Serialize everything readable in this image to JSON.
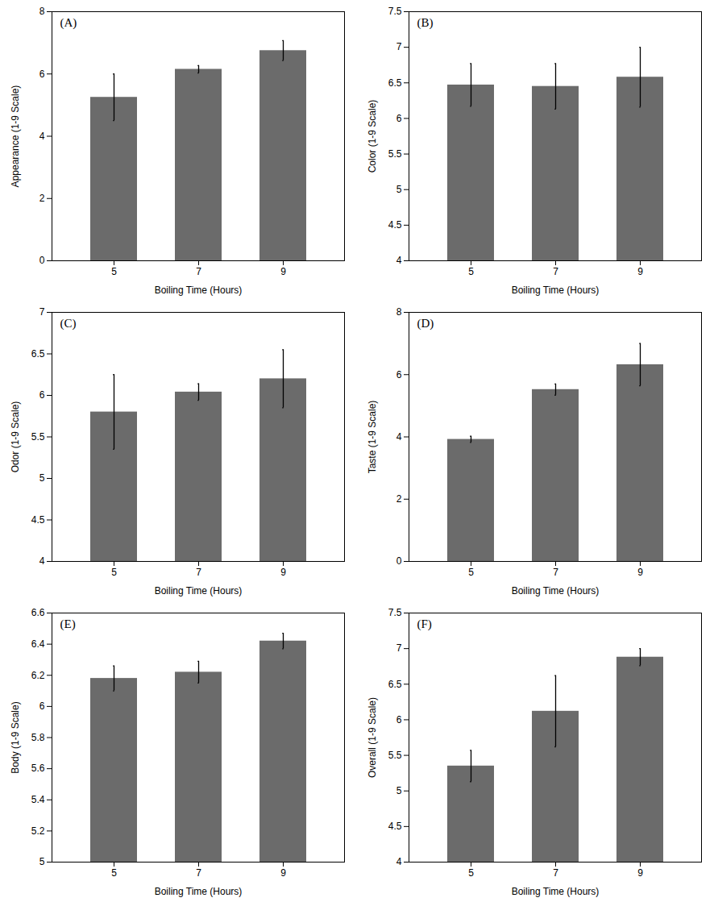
{
  "chart_data": [
    {
      "type": "bar",
      "title": "(A)",
      "xlabel": "Boiling Time (Hours)",
      "ylabel": "Appearance (1-9 Scale)",
      "categories": [
        "5",
        "7",
        "9"
      ],
      "values": [
        5.25,
        6.15,
        6.75
      ],
      "errors": [
        0.75,
        0.12,
        0.32
      ],
      "color": "#6b6b6b",
      "ylim": [
        0,
        8
      ],
      "yticks": [
        0,
        2,
        4,
        6,
        8
      ],
      "grid": false
    },
    {
      "type": "bar",
      "title": "(B)",
      "xlabel": "Boiling Time (Hours)",
      "ylabel": "Color (1-9 Scale)",
      "categories": [
        "5",
        "7",
        "9"
      ],
      "values": [
        6.47,
        6.45,
        6.58
      ],
      "errors": [
        0.3,
        0.32,
        0.42
      ],
      "color": "#6b6b6b",
      "ylim": [
        4.0,
        7.5
      ],
      "yticks": [
        4.0,
        4.5,
        5.0,
        5.5,
        6.0,
        6.5,
        7.0,
        7.5
      ],
      "grid": false
    },
    {
      "type": "bar",
      "title": "(C)",
      "xlabel": "Boiling Time (Hours)",
      "ylabel": "Odor (1-9 Scale)",
      "categories": [
        "5",
        "7",
        "9"
      ],
      "values": [
        5.8,
        6.04,
        6.2
      ],
      "errors": [
        0.45,
        0.1,
        0.35
      ],
      "color": "#6b6b6b",
      "ylim": [
        4.0,
        7.0
      ],
      "yticks": [
        4.0,
        4.5,
        5.0,
        5.5,
        6.0,
        6.5,
        7.0
      ],
      "grid": false
    },
    {
      "type": "bar",
      "title": "(D)",
      "xlabel": "Boiling Time (Hours)",
      "ylabel": "Taste (1-9 Scale)",
      "categories": [
        "5",
        "7",
        "9"
      ],
      "values": [
        3.92,
        5.52,
        6.32
      ],
      "errors": [
        0.1,
        0.18,
        0.68
      ],
      "color": "#6b6b6b",
      "ylim": [
        0,
        8
      ],
      "yticks": [
        0,
        2,
        4,
        6,
        8
      ],
      "grid": false
    },
    {
      "type": "bar",
      "title": "(E)",
      "xlabel": "Boiling Time (Hours)",
      "ylabel": "Body (1-9 Scale)",
      "categories": [
        "5",
        "7",
        "9"
      ],
      "values": [
        6.18,
        6.22,
        6.42
      ],
      "errors": [
        0.08,
        0.07,
        0.05
      ],
      "color": "#6b6b6b",
      "ylim": [
        5.0,
        6.6
      ],
      "yticks": [
        5.0,
        5.2,
        5.4,
        5.6,
        5.8,
        6.0,
        6.2,
        6.4,
        6.6
      ],
      "grid": false
    },
    {
      "type": "bar",
      "title": "(F)",
      "xlabel": "Boiling Time (Hours)",
      "ylabel": "Overall (1-9 Scale)",
      "categories": [
        "5",
        "7",
        "9"
      ],
      "values": [
        5.35,
        6.12,
        6.88
      ],
      "errors": [
        0.22,
        0.5,
        0.12
      ],
      "color": "#6b6b6b",
      "ylim": [
        4.0,
        7.5
      ],
      "yticks": [
        4.0,
        4.5,
        5.0,
        5.5,
        6.0,
        6.5,
        7.0,
        7.5
      ],
      "grid": false
    }
  ]
}
